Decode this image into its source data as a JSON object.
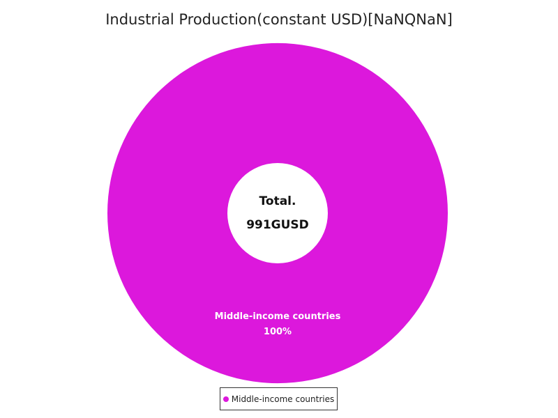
{
  "chart_data": {
    "type": "pie",
    "title": "Industrial Production(constant USD)[NaNQNaN]",
    "center_label": {
      "heading": "Total.",
      "value": "991GUSD"
    },
    "slices": [
      {
        "name": "Middle-income countries",
        "percent_label": "100%",
        "share": 1.0,
        "color": "#dc18dc"
      }
    ],
    "legend": {
      "position": "bottom",
      "entries": [
        "Middle-income countries"
      ]
    }
  }
}
